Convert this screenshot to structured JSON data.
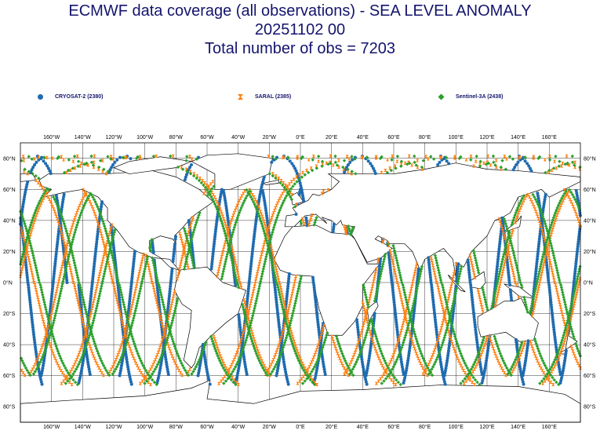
{
  "title": {
    "line1": "ECMWF data coverage (all observations) - SEA LEVEL ANOMALY",
    "line2": "20251102 00",
    "line3": "Total number of obs = 7203"
  },
  "legend": [
    {
      "label": "CRYOSAT-2 (2380)",
      "color": "#1f6bb0",
      "marker": "circle"
    },
    {
      "label": "SARAL (2385)",
      "color": "#ff7f0e",
      "marker": "hourglass"
    },
    {
      "label": "Sentinel-3A (2438)",
      "color": "#2ca02c",
      "marker": "diamond"
    }
  ],
  "chart_data": {
    "type": "scatter",
    "title": "ECMWF data coverage (all observations) - SEA LEVEL ANOMALY",
    "date": "20251102 00",
    "total_obs": 7203,
    "series": [
      {
        "name": "CRYOSAT-2",
        "count": 2380
      },
      {
        "name": "SARAL",
        "count": 2385
      },
      {
        "name": "Sentinel-3A",
        "count": 2438
      }
    ],
    "xlim": [
      -180,
      180
    ],
    "ylim": [
      -90,
      90
    ],
    "lon_ticks": [
      "160°W",
      "140°W",
      "120°W",
      "100°W",
      "80°W",
      "60°W",
      "40°W",
      "20°W",
      "0°E",
      "20°E",
      "40°E",
      "60°E",
      "80°E",
      "100°E",
      "120°E",
      "140°E",
      "160°E"
    ],
    "lat_ticks": [
      "80°N",
      "60°N",
      "40°N",
      "20°N",
      "0°N",
      "20°S",
      "40°S",
      "60°S",
      "80°S"
    ],
    "grid": true
  }
}
